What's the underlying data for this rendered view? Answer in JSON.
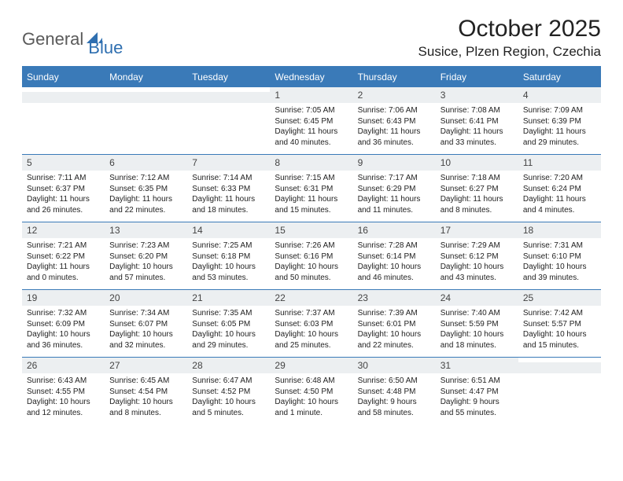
{
  "logo": {
    "part1": "General",
    "part2": "Blue"
  },
  "title": "October 2025",
  "location": "Susice, Plzen Region, Czechia",
  "colors": {
    "header_bg": "#3a7ab8",
    "header_text": "#ffffff",
    "daynum_bg": "#eceff1",
    "border": "#3a7ab8",
    "logo_gray": "#5a5a5a",
    "logo_blue": "#2f6fb0"
  },
  "day_headers": [
    "Sunday",
    "Monday",
    "Tuesday",
    "Wednesday",
    "Thursday",
    "Friday",
    "Saturday"
  ],
  "weeks": [
    {
      "nums": [
        "",
        "",
        "",
        "1",
        "2",
        "3",
        "4"
      ],
      "cells": [
        null,
        null,
        null,
        {
          "sunrise": "7:05 AM",
          "sunset": "6:45 PM",
          "daylight": "11 hours and 40 minutes."
        },
        {
          "sunrise": "7:06 AM",
          "sunset": "6:43 PM",
          "daylight": "11 hours and 36 minutes."
        },
        {
          "sunrise": "7:08 AM",
          "sunset": "6:41 PM",
          "daylight": "11 hours and 33 minutes."
        },
        {
          "sunrise": "7:09 AM",
          "sunset": "6:39 PM",
          "daylight": "11 hours and 29 minutes."
        }
      ]
    },
    {
      "nums": [
        "5",
        "6",
        "7",
        "8",
        "9",
        "10",
        "11"
      ],
      "cells": [
        {
          "sunrise": "7:11 AM",
          "sunset": "6:37 PM",
          "daylight": "11 hours and 26 minutes."
        },
        {
          "sunrise": "7:12 AM",
          "sunset": "6:35 PM",
          "daylight": "11 hours and 22 minutes."
        },
        {
          "sunrise": "7:14 AM",
          "sunset": "6:33 PM",
          "daylight": "11 hours and 18 minutes."
        },
        {
          "sunrise": "7:15 AM",
          "sunset": "6:31 PM",
          "daylight": "11 hours and 15 minutes."
        },
        {
          "sunrise": "7:17 AM",
          "sunset": "6:29 PM",
          "daylight": "11 hours and 11 minutes."
        },
        {
          "sunrise": "7:18 AM",
          "sunset": "6:27 PM",
          "daylight": "11 hours and 8 minutes."
        },
        {
          "sunrise": "7:20 AM",
          "sunset": "6:24 PM",
          "daylight": "11 hours and 4 minutes."
        }
      ]
    },
    {
      "nums": [
        "12",
        "13",
        "14",
        "15",
        "16",
        "17",
        "18"
      ],
      "cells": [
        {
          "sunrise": "7:21 AM",
          "sunset": "6:22 PM",
          "daylight": "11 hours and 0 minutes."
        },
        {
          "sunrise": "7:23 AM",
          "sunset": "6:20 PM",
          "daylight": "10 hours and 57 minutes."
        },
        {
          "sunrise": "7:25 AM",
          "sunset": "6:18 PM",
          "daylight": "10 hours and 53 minutes."
        },
        {
          "sunrise": "7:26 AM",
          "sunset": "6:16 PM",
          "daylight": "10 hours and 50 minutes."
        },
        {
          "sunrise": "7:28 AM",
          "sunset": "6:14 PM",
          "daylight": "10 hours and 46 minutes."
        },
        {
          "sunrise": "7:29 AM",
          "sunset": "6:12 PM",
          "daylight": "10 hours and 43 minutes."
        },
        {
          "sunrise": "7:31 AM",
          "sunset": "6:10 PM",
          "daylight": "10 hours and 39 minutes."
        }
      ]
    },
    {
      "nums": [
        "19",
        "20",
        "21",
        "22",
        "23",
        "24",
        "25"
      ],
      "cells": [
        {
          "sunrise": "7:32 AM",
          "sunset": "6:09 PM",
          "daylight": "10 hours and 36 minutes."
        },
        {
          "sunrise": "7:34 AM",
          "sunset": "6:07 PM",
          "daylight": "10 hours and 32 minutes."
        },
        {
          "sunrise": "7:35 AM",
          "sunset": "6:05 PM",
          "daylight": "10 hours and 29 minutes."
        },
        {
          "sunrise": "7:37 AM",
          "sunset": "6:03 PM",
          "daylight": "10 hours and 25 minutes."
        },
        {
          "sunrise": "7:39 AM",
          "sunset": "6:01 PM",
          "daylight": "10 hours and 22 minutes."
        },
        {
          "sunrise": "7:40 AM",
          "sunset": "5:59 PM",
          "daylight": "10 hours and 18 minutes."
        },
        {
          "sunrise": "7:42 AM",
          "sunset": "5:57 PM",
          "daylight": "10 hours and 15 minutes."
        }
      ]
    },
    {
      "nums": [
        "26",
        "27",
        "28",
        "29",
        "30",
        "31",
        ""
      ],
      "cells": [
        {
          "sunrise": "6:43 AM",
          "sunset": "4:55 PM",
          "daylight": "10 hours and 12 minutes."
        },
        {
          "sunrise": "6:45 AM",
          "sunset": "4:54 PM",
          "daylight": "10 hours and 8 minutes."
        },
        {
          "sunrise": "6:47 AM",
          "sunset": "4:52 PM",
          "daylight": "10 hours and 5 minutes."
        },
        {
          "sunrise": "6:48 AM",
          "sunset": "4:50 PM",
          "daylight": "10 hours and 1 minute."
        },
        {
          "sunrise": "6:50 AM",
          "sunset": "4:48 PM",
          "daylight": "9 hours and 58 minutes."
        },
        {
          "sunrise": "6:51 AM",
          "sunset": "4:47 PM",
          "daylight": "9 hours and 55 minutes."
        },
        null
      ]
    }
  ],
  "labels": {
    "sunrise": "Sunrise: ",
    "sunset": "Sunset: ",
    "daylight": "Daylight: "
  }
}
